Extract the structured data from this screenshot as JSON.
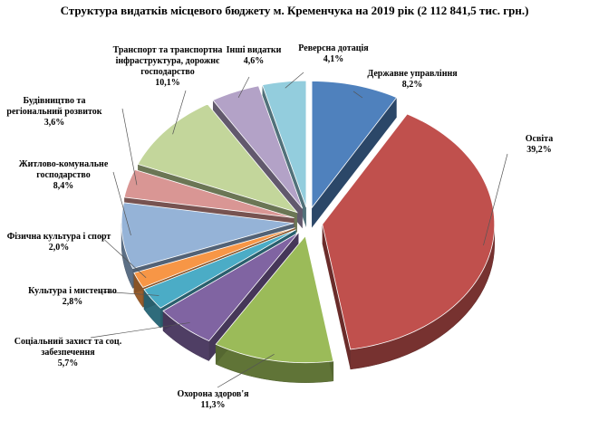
{
  "chart_data": {
    "type": "pie",
    "title": "Структура видатків місцевого бюджету м. Кременчука на 2019 рік (2 112 841,5 тис. грн.)",
    "categories": [
      "Державне управління",
      "Освіта",
      "Охорона здоров'я",
      "Соціальний захист та соц. забезпечення",
      "Культура і мистецтво",
      "Фізична культура і спорт",
      "Житлово-комунальне господарство",
      "Будівництво та регіональний розвиток",
      "Транспорт та транспортна інфраструктура, дорожнє господарство",
      "Інші видатки",
      "Реверсна дотація"
    ],
    "values": [
      8.2,
      39.2,
      11.3,
      5.7,
      2.8,
      2.0,
      8.4,
      3.6,
      10.1,
      4.6,
      4.1
    ],
    "value_labels": [
      "8,2%",
      "39,2%",
      "11,3%",
      "5,7%",
      "2,8%",
      "2,0%",
      "8,4%",
      "3,6%",
      "10,1%",
      "4,6%",
      "4,1%"
    ],
    "colors": [
      "#4f81bd",
      "#c0504d",
      "#9bbb59",
      "#8064a2",
      "#4bacc6",
      "#f79646",
      "#95b3d7",
      "#d99694",
      "#c3d69b",
      "#b3a2c7",
      "#93cddd"
    ]
  }
}
